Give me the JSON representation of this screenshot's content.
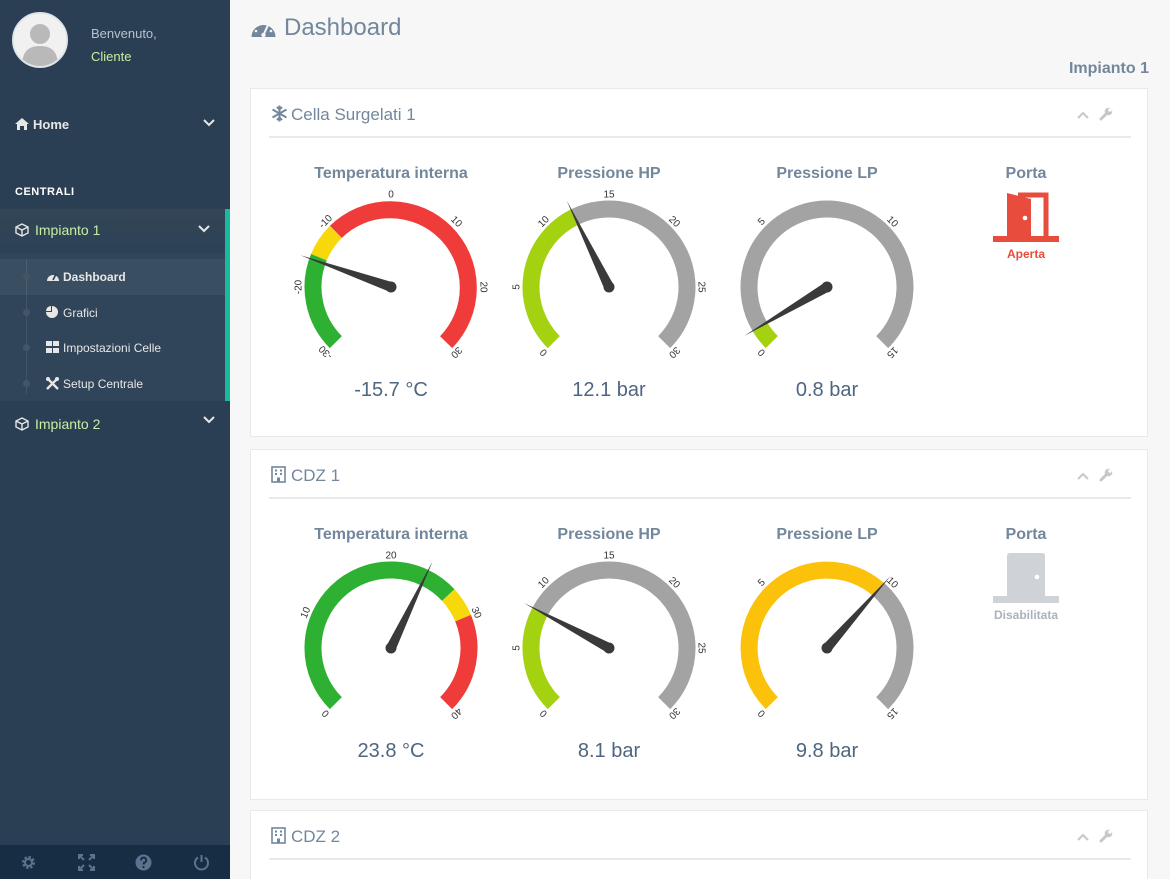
{
  "sidebar": {
    "welcome": "Benvenuto,",
    "user": "Cliente",
    "home_label": "Home",
    "section_title": "CENTRALI",
    "plant1_label": "Impianto 1",
    "plant1_items": [
      {
        "label": "Dashboard",
        "icon": "dashboard-icon"
      },
      {
        "label": "Grafici",
        "icon": "pie-chart-icon"
      },
      {
        "label": "Impostazioni Celle",
        "icon": "grid-icon"
      },
      {
        "label": "Setup Centrale",
        "icon": "tools-icon"
      }
    ],
    "plant2_label": "Impianto 2",
    "footer_icons": [
      "settings-icon",
      "fullscreen-icon",
      "help-icon",
      "power-icon"
    ]
  },
  "header": {
    "title": "Dashboard",
    "plant_name": "Impianto 1"
  },
  "colors": {
    "green": "#2eb132",
    "yellow": "#f7d80a",
    "red": "#ef3b3a",
    "lime": "#a4d211",
    "grey": "#a3a3a3",
    "amber": "#fcc10b",
    "needle": "#3a3a3a",
    "accent": "#1abb9c"
  },
  "panels": [
    {
      "title": "Cella Surgelati 1",
      "icon": "snowflake-icon",
      "gauges": [
        {
          "label": "Temperatura interna",
          "value": -15.7,
          "display": "-15.7 °C",
          "min": -30,
          "max": 30,
          "ticks": [
            "-30",
            "-20",
            "-10",
            "0",
            "10",
            "20",
            "30"
          ],
          "bands": [
            {
              "from": -30,
              "to": -15,
              "color": "green"
            },
            {
              "from": -15,
              "to": -10,
              "color": "yellow"
            },
            {
              "from": -10,
              "to": 30,
              "color": "red"
            }
          ]
        },
        {
          "label": "Pressione HP",
          "value": 12.1,
          "display": "12.1 bar",
          "min": 0,
          "max": 30,
          "ticks": [
            "0",
            "5",
            "10",
            "15",
            "20",
            "25",
            "30"
          ],
          "bands": [
            {
              "from": 0,
              "to": 12.1,
              "color": "lime"
            },
            {
              "from": 12.1,
              "to": 30,
              "color": "grey"
            }
          ]
        },
        {
          "label": "Pressione LP",
          "value": 0.8,
          "display": "0.8 bar",
          "min": 0,
          "max": 15,
          "ticks": [
            "0",
            "5",
            "10",
            "15"
          ],
          "bands": [
            {
              "from": 0,
              "to": 0.8,
              "color": "lime"
            },
            {
              "from": 0.8,
              "to": 15,
              "color": "grey"
            }
          ]
        }
      ],
      "door": {
        "label": "Porta",
        "status": "Aperta",
        "state": "open",
        "color": "#e74c3c"
      }
    },
    {
      "title": "CDZ 1",
      "icon": "building-icon",
      "gauges": [
        {
          "label": "Temperatura interna",
          "value": 23.8,
          "display": "23.8 °C",
          "min": 0,
          "max": 40,
          "ticks": [
            "0",
            "10",
            "20",
            "30",
            "40"
          ],
          "bands": [
            {
              "from": 0,
              "to": 27,
              "color": "green"
            },
            {
              "from": 27,
              "to": 30,
              "color": "yellow"
            },
            {
              "from": 30,
              "to": 40,
              "color": "red"
            }
          ]
        },
        {
          "label": "Pressione HP",
          "value": 8.1,
          "display": "8.1 bar",
          "min": 0,
          "max": 30,
          "ticks": [
            "0",
            "5",
            "10",
            "15",
            "20",
            "25",
            "30"
          ],
          "bands": [
            {
              "from": 0,
              "to": 8.1,
              "color": "lime"
            },
            {
              "from": 8.1,
              "to": 30,
              "color": "grey"
            }
          ]
        },
        {
          "label": "Pressione LP",
          "value": 9.8,
          "display": "9.8 bar",
          "min": 0,
          "max": 15,
          "ticks": [
            "0",
            "5",
            "10",
            "15"
          ],
          "bands": [
            {
              "from": 0,
              "to": 9.8,
              "color": "amber"
            },
            {
              "from": 9.8,
              "to": 15,
              "color": "grey"
            }
          ]
        }
      ],
      "door": {
        "label": "Porta",
        "status": "Disabilitata",
        "state": "disabled",
        "color": "#aab2bd"
      }
    },
    {
      "title": "CDZ 2",
      "icon": "building-icon"
    }
  ]
}
